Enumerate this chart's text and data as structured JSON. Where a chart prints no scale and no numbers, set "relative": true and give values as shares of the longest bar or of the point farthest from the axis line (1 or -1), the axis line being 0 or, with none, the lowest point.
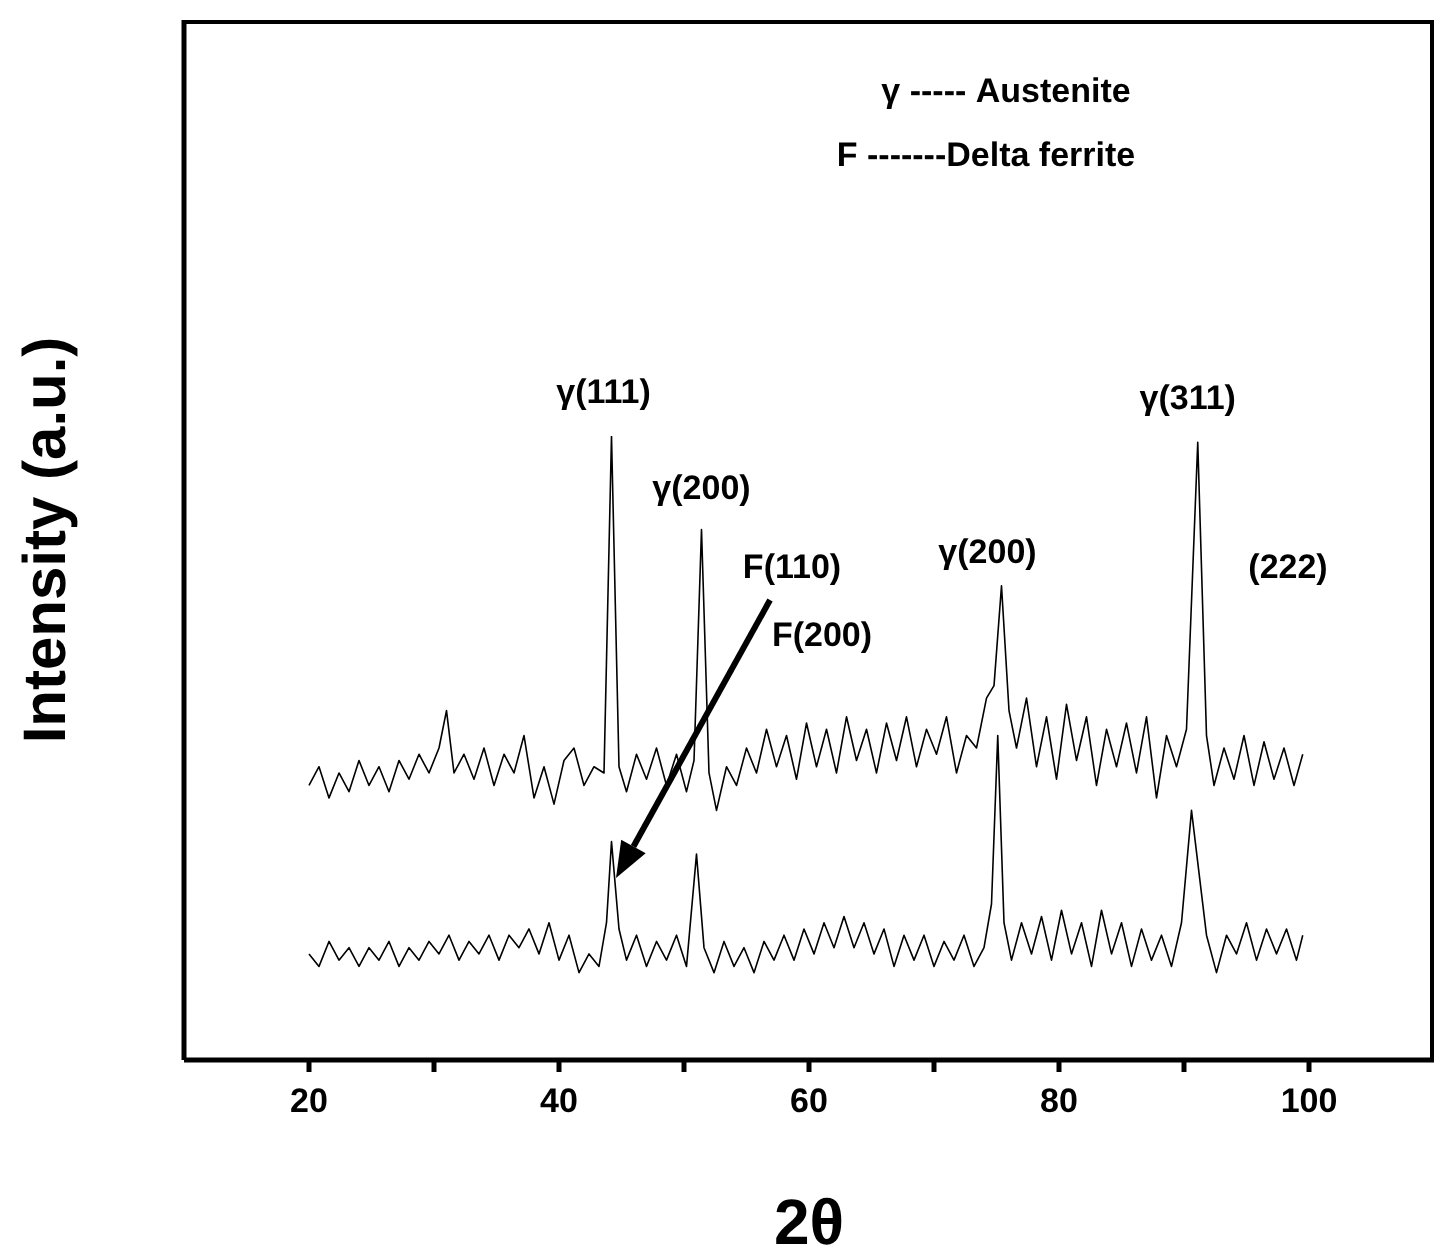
{
  "chart_data": {
    "type": "line",
    "relative": true,
    "xlabel": "2θ",
    "ylabel": "Intensity (a.u.)",
    "xlim": [
      10,
      110
    ],
    "xticks": [
      20,
      {
        "value": 30,
        "label": null
      },
      40,
      {
        "value": 50,
        "label": null
      },
      60,
      {
        "value": 70,
        "label": null
      },
      80,
      {
        "value": 90,
        "label": null
      },
      100
    ],
    "annotations": [
      {
        "text": "γ(111)",
        "x": 44.2,
        "y": 1.0
      },
      {
        "text": "γ(200)",
        "x": 51.4,
        "y": 0.85
      },
      "F(110)",
      "F(200)",
      {
        "text": "γ(200)",
        "x": 75.4,
        "y": 0.76
      },
      {
        "text": "γ(311)",
        "x": 91.1,
        "y": 0.99
      },
      "(222)",
      "γ ----- Austenite",
      "F -------Delta ferrite"
    ],
    "series": [
      {
        "color": "#000000",
        "x": [
          20,
          20.8,
          21.6,
          22.4,
          23.2,
          24,
          24.8,
          25.6,
          26.4,
          27.2,
          28,
          28.8,
          29.6,
          30.4,
          31,
          31.6,
          32.4,
          33.2,
          34,
          34.8,
          35.6,
          36.4,
          37.2,
          38,
          38.8,
          39.6,
          40.4,
          41.2,
          42,
          42.8,
          43.6,
          44.2,
          44.8,
          45.4,
          46.2,
          47,
          47.8,
          48.6,
          49.4,
          50.2,
          50.8,
          51.4,
          52,
          52.6,
          53.4,
          54.2,
          55,
          55.8,
          56.6,
          57.4,
          58.2,
          59,
          59.8,
          60.6,
          61.4,
          62.2,
          63,
          63.8,
          64.6,
          65.4,
          66.2,
          67,
          67.8,
          68.6,
          69.4,
          70.2,
          71,
          71.8,
          72.6,
          73.4,
          74.2,
          74.8,
          75.4,
          76,
          76.6,
          77.4,
          78.2,
          79,
          79.8,
          80.6,
          81.4,
          82.2,
          83,
          83.8,
          84.6,
          85.4,
          86.2,
          87,
          87.8,
          88.6,
          89.4,
          90.2,
          91.1,
          91.8,
          92.4,
          93.2,
          94,
          94.8,
          95.6,
          96.4,
          97.2,
          98,
          98.8,
          99.5
        ],
        "values": [
          0.44,
          0.47,
          0.42,
          0.46,
          0.43,
          0.48,
          0.44,
          0.47,
          0.43,
          0.48,
          0.45,
          0.49,
          0.46,
          0.5,
          0.56,
          0.46,
          0.49,
          0.45,
          0.5,
          0.44,
          0.49,
          0.46,
          0.52,
          0.42,
          0.47,
          0.41,
          0.48,
          0.5,
          0.44,
          0.47,
          0.46,
          1.0,
          0.47,
          0.43,
          0.49,
          0.45,
          0.5,
          0.44,
          0.49,
          0.43,
          0.48,
          0.85,
          0.46,
          0.4,
          0.47,
          0.44,
          0.5,
          0.46,
          0.53,
          0.47,
          0.52,
          0.45,
          0.54,
          0.47,
          0.53,
          0.46,
          0.55,
          0.48,
          0.53,
          0.46,
          0.54,
          0.48,
          0.55,
          0.47,
          0.53,
          0.49,
          0.55,
          0.46,
          0.52,
          0.5,
          0.58,
          0.6,
          0.76,
          0.56,
          0.5,
          0.58,
          0.47,
          0.55,
          0.45,
          0.57,
          0.48,
          0.55,
          0.44,
          0.53,
          0.47,
          0.54,
          0.46,
          0.55,
          0.42,
          0.52,
          0.47,
          0.53,
          0.99,
          0.52,
          0.44,
          0.5,
          0.45,
          0.52,
          0.44,
          0.51,
          0.45,
          0.5,
          0.44,
          0.49
        ]
      },
      {
        "color": "#000000",
        "x": [
          20,
          20.8,
          21.6,
          22.4,
          23.2,
          24,
          24.8,
          25.6,
          26.4,
          27.2,
          28,
          28.8,
          29.6,
          30.4,
          31.2,
          32,
          32.8,
          33.6,
          34.4,
          35.2,
          36,
          36.8,
          37.6,
          38.4,
          39.2,
          40,
          40.8,
          41.6,
          42.4,
          43.2,
          43.8,
          44.2,
          44.8,
          45.4,
          46.2,
          47,
          47.8,
          48.6,
          49.4,
          50.2,
          51,
          51.6,
          52.4,
          53.2,
          54,
          54.8,
          55.6,
          56.4,
          57.2,
          58,
          58.8,
          59.6,
          60.4,
          61.2,
          62,
          62.8,
          63.6,
          64.4,
          65.2,
          66,
          66.8,
          67.6,
          68.4,
          69.2,
          70,
          70.8,
          71.6,
          72.4,
          73.2,
          74,
          74.6,
          75.1,
          75.6,
          76.2,
          77,
          77.8,
          78.6,
          79.4,
          80.2,
          81,
          81.8,
          82.6,
          83.4,
          84.2,
          85,
          85.8,
          86.6,
          87.4,
          88.2,
          89,
          89.8,
          90.6,
          91.2,
          91.8,
          92.6,
          93.4,
          94.2,
          95,
          95.8,
          96.6,
          97.4,
          98.2,
          99,
          99.5
        ],
        "values": [
          0.17,
          0.15,
          0.19,
          0.16,
          0.18,
          0.15,
          0.18,
          0.16,
          0.19,
          0.15,
          0.18,
          0.16,
          0.19,
          0.17,
          0.2,
          0.16,
          0.19,
          0.17,
          0.2,
          0.16,
          0.2,
          0.18,
          0.21,
          0.17,
          0.22,
          0.16,
          0.2,
          0.14,
          0.17,
          0.15,
          0.22,
          0.35,
          0.21,
          0.16,
          0.2,
          0.15,
          0.19,
          0.16,
          0.2,
          0.15,
          0.33,
          0.18,
          0.14,
          0.19,
          0.15,
          0.18,
          0.14,
          0.19,
          0.16,
          0.2,
          0.16,
          0.21,
          0.17,
          0.22,
          0.18,
          0.23,
          0.18,
          0.22,
          0.17,
          0.21,
          0.15,
          0.2,
          0.16,
          0.2,
          0.15,
          0.19,
          0.16,
          0.2,
          0.15,
          0.18,
          0.25,
          0.52,
          0.22,
          0.16,
          0.22,
          0.17,
          0.23,
          0.16,
          0.24,
          0.17,
          0.22,
          0.15,
          0.24,
          0.17,
          0.22,
          0.15,
          0.21,
          0.16,
          0.2,
          0.15,
          0.22,
          0.4,
          0.3,
          0.2,
          0.14,
          0.2,
          0.17,
          0.22,
          0.16,
          0.21,
          0.17,
          0.21,
          0.16,
          0.2
        ]
      }
    ]
  }
}
